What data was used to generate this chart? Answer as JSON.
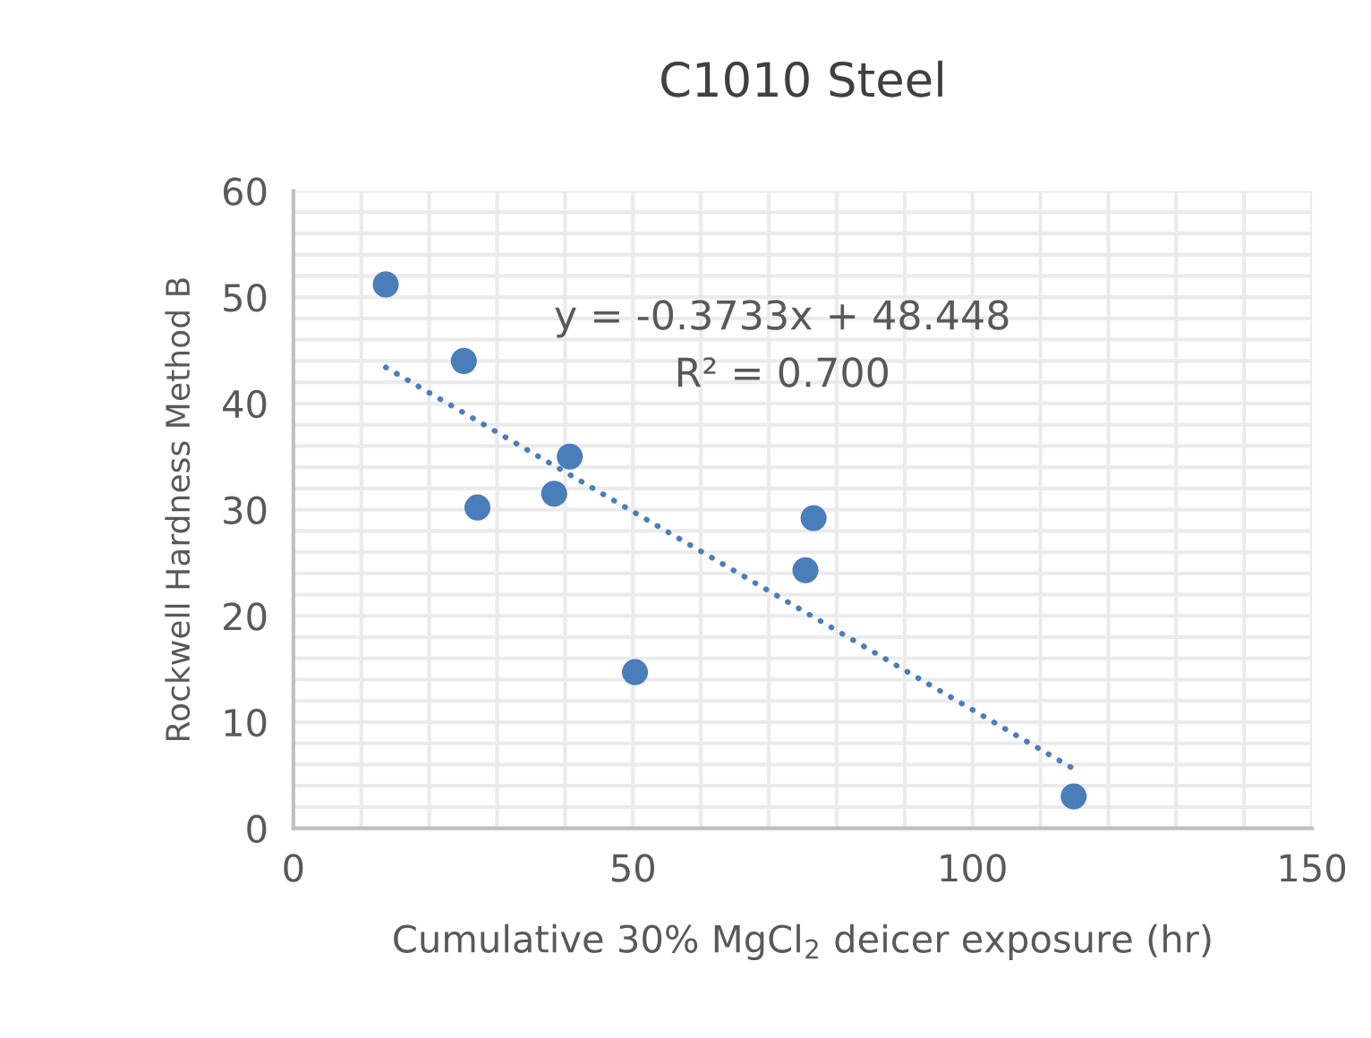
{
  "chart_data": {
    "type": "scatter",
    "title": "C1010 Steel",
    "xlabel": "Cumulative 30% MgCl$_{2}$ deicer exposure (hr)",
    "ylabel": "Rockwell Hardness Method B",
    "series": [
      {
        "color": "#4a7ebb",
        "marker": "circle",
        "x": [
          13.6,
          25.1,
          27.1,
          38.4,
          40.7,
          50.3,
          75.4,
          76.6,
          114.9
        ],
        "values": [
          51.2,
          44.0,
          30.2,
          31.5,
          35.0,
          14.7,
          24.3,
          29.2,
          3.0
        ]
      },
      {
        "type": "line",
        "color": "#4a7ebb",
        "line_style": "dotted",
        "marker": "none",
        "x": [
          13.6,
          114.9
        ],
        "values": [
          43.4,
          5.6
        ]
      }
    ],
    "annotations": [
      "y = -0.3733x + 48.448",
      "R² = 0.700"
    ],
    "xlim": [
      0,
      150
    ],
    "xticks": [
      0,
      50,
      100,
      150
    ],
    "ylim": [
      0,
      60
    ],
    "yticks": [
      0,
      10,
      20,
      30,
      40,
      50,
      60
    ],
    "grid": true,
    "legend": false
  }
}
